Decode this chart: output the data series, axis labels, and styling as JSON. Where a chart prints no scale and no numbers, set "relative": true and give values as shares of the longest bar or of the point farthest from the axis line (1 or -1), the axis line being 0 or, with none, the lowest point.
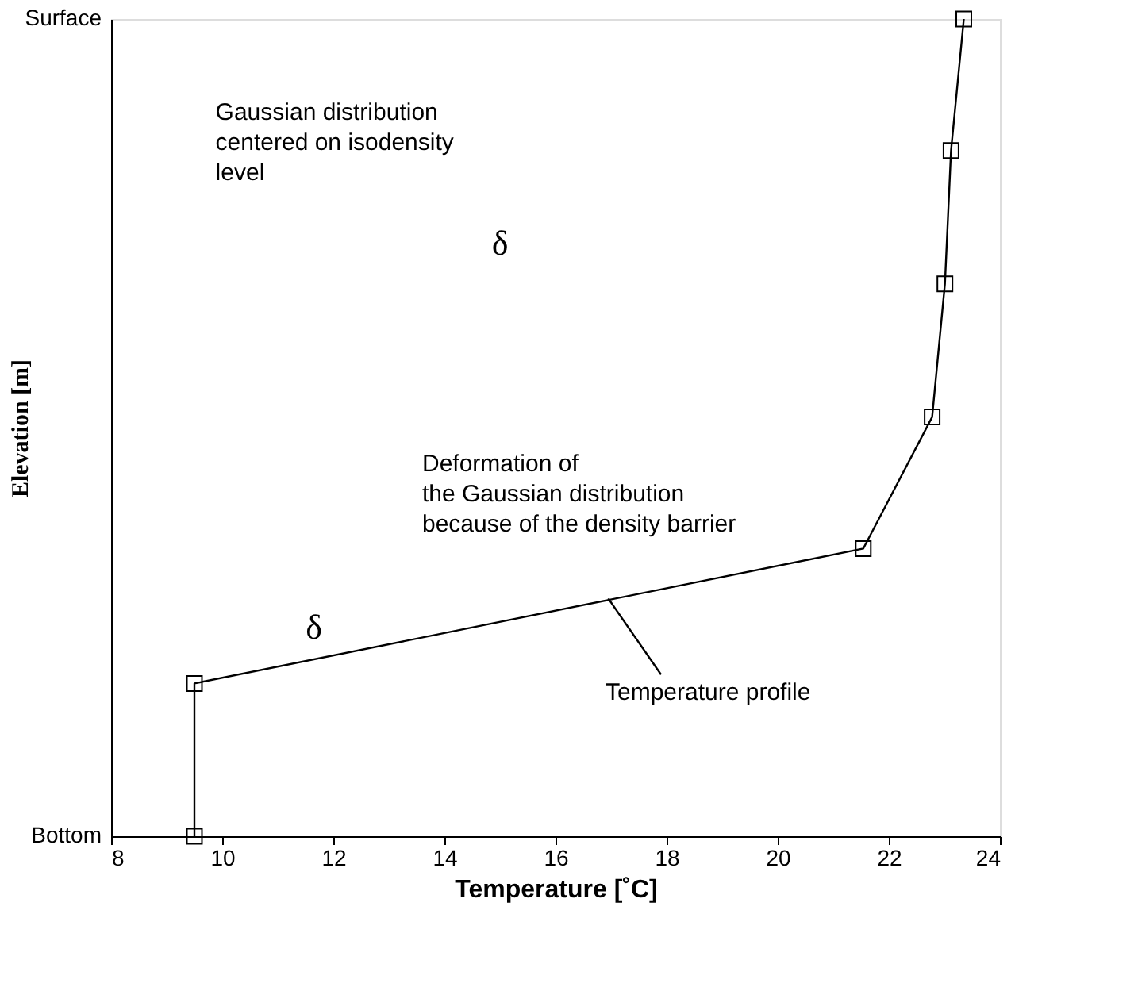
{
  "chart_data": {
    "type": "line",
    "xlabel": "Temperature [˚C]",
    "ylabel": "Elevation [m]",
    "x": [
      9.5,
      9.5,
      21.54,
      22.78,
      23.01,
      23.12,
      23.35
    ],
    "series": [
      {
        "color": "#000000",
        "values": [
          0,
          0.187,
          0.352,
          0.513,
          0.676,
          0.839,
          1.0
        ]
      }
    ],
    "relative": true,
    "xlim": [
      8,
      24
    ],
    "xticks": [
      8,
      10,
      12,
      14,
      16,
      18,
      20,
      22,
      24
    ],
    "annotations": [
      "Gaussian distribution\ncentered on isodensity\nlevel",
      "δ",
      "Deformation of\nthe Gaussian distribution\nbecause of the density barrier",
      "δ",
      "Temperature profile",
      "Surface",
      "Bottom"
    ],
    "marker": "square",
    "line_style": "solid",
    "grid": false
  }
}
